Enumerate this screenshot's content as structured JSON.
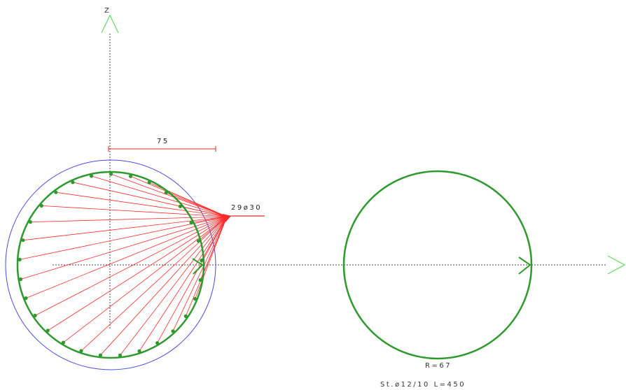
{
  "axes": {
    "z_label": "Z"
  },
  "section": {
    "dimension_label": "75",
    "rebar_label": "29ø30",
    "rebar_count": 29
  },
  "stirrup": {
    "radius_label": "R=67",
    "spec_label": "St.ø12/10 L=450"
  },
  "colors": {
    "axis": "#444444",
    "rebar_ring": "#2e9a2e",
    "outer_contour": "#4a4adf",
    "leader_lines": "#ff2a2a",
    "axis_arrow": "#66d866"
  }
}
